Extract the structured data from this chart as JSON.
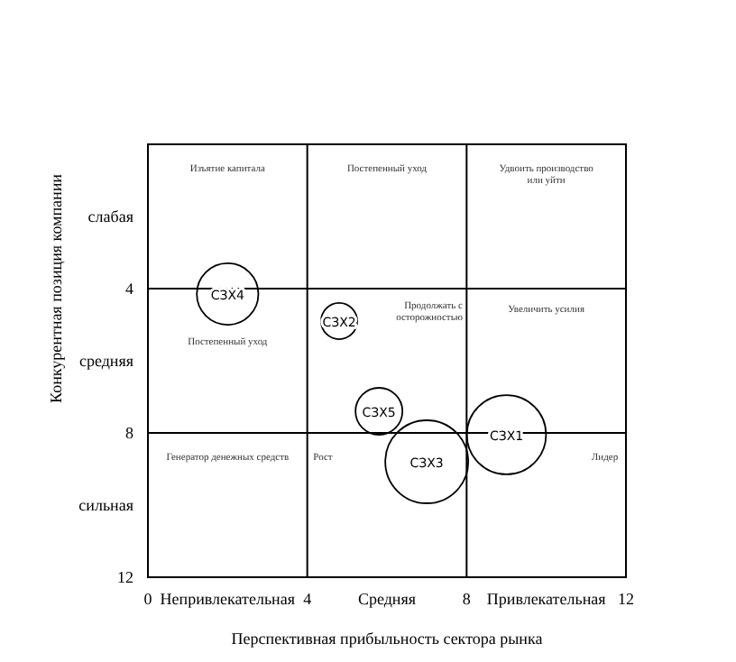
{
  "chart_data": {
    "type": "bubble",
    "xlabel": "Перспективная прибыльность сектора рынка",
    "ylabel": "Конкурентная позиция компании",
    "xlim": [
      0,
      12
    ],
    "ylim": [
      12,
      0
    ],
    "xticks": [
      0,
      {
        "value": 2,
        "label": "Непривлекательная"
      },
      4,
      {
        "value": 6,
        "label": "Средняя"
      },
      8,
      {
        "value": 10,
        "label": "Привлекательная"
      },
      12
    ],
    "yticks": [
      {
        "value": 2,
        "label": "слабая"
      },
      4,
      {
        "value": 6,
        "label": "средняя"
      },
      8,
      {
        "value": 10,
        "label": "сильная"
      },
      12
    ],
    "grid": true,
    "series": [
      {
        "name": "СЗХ4",
        "color": "#000000",
        "x": [
          2.0
        ],
        "values": [
          4.15
        ],
        "sizes": [
          0.55
        ]
      },
      {
        "name": "СЗХ2",
        "color": "#000000",
        "x": [
          4.8
        ],
        "values": [
          4.9
        ],
        "sizes": [
          0.19
        ]
      },
      {
        "name": "СЗХ5",
        "color": "#000000",
        "x": [
          5.8
        ],
        "values": [
          7.4
        ],
        "sizes": [
          0.32
        ]
      },
      {
        "name": "СЗХ3",
        "color": "#000000",
        "x": [
          7.0
        ],
        "values": [
          8.8
        ],
        "sizes": [
          1
        ]
      },
      {
        "name": "СЗХ1",
        "color": "#000000",
        "x": [
          9.0
        ],
        "values": [
          8.05
        ],
        "sizes": [
          0.91
        ]
      }
    ],
    "annotations": [
      "Изъятие капитала",
      "Постепенный уход",
      "Удвоить производство или уйти",
      "Постепенный уход",
      "Продолжать с осторожностью",
      "Увеличить усилия",
      "Генератор денежных средств",
      "Рост",
      "Лидер"
    ]
  }
}
